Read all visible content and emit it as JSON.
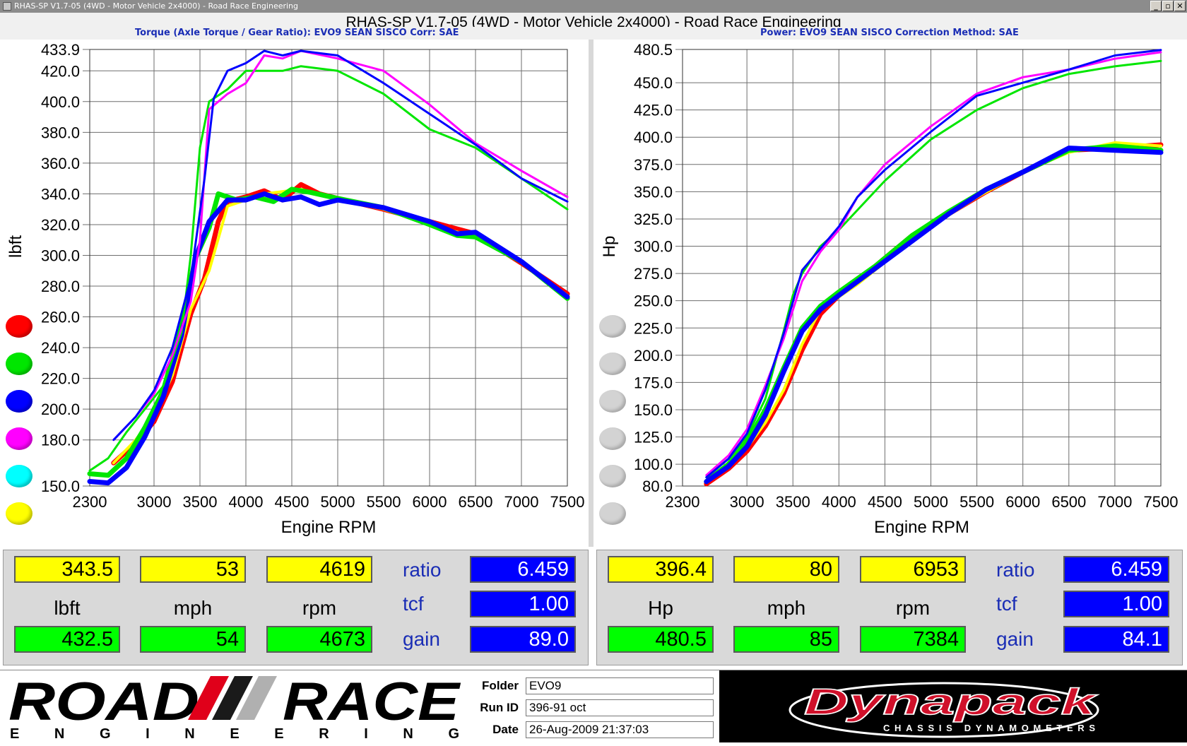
{
  "window": {
    "title": "RHAS-SP V1.7-05  (4WD - Motor Vehicle 2x4000) - Road Race Engineering",
    "buttons": [
      "_",
      "▫",
      "✕"
    ]
  },
  "headline": "RHAS-SP V1.7-05  (4WD - Motor Vehicle 2x4000) - Road Race Engineering",
  "subheads": {
    "torque": "Torque (Axle Torque / Gear Ratio): EVO9 SEAN SISCO     Corr: SAE",
    "power": "Power: EVO9 SEAN SISCO     Correction Method: SAE"
  },
  "legend_colors": [
    "#ff0000",
    "#00e600",
    "#0000ff",
    "#ff00ff",
    "#00ffff",
    "#ffff00"
  ],
  "power_legend_color": "#d3d3d3",
  "chart_data": [
    {
      "type": "line",
      "xlabel": "Engine RPM",
      "ylabel": "lbft",
      "xlim": [
        2300,
        7500
      ],
      "ylim": [
        150,
        433.9
      ],
      "x_ticks": [
        "2300",
        "3000",
        "3500",
        "4000",
        "4500",
        "5000",
        "5500",
        "6000",
        "6500",
        "7000",
        "7500"
      ],
      "y_ticks": [
        "433.9",
        "420.0",
        "400.0",
        "380.0",
        "360.0",
        "340.0",
        "320.0",
        "300.0",
        "280.0",
        "260.0",
        "240.0",
        "220.0",
        "200.0",
        "180.0",
        "150.0"
      ],
      "grid": true,
      "series": [
        {
          "color": "#ff0000",
          "width": 7,
          "x": [
            2560,
            2800,
            3000,
            3200,
            3400,
            3550,
            3700,
            3800,
            4000,
            4200,
            4400,
            4600,
            4800,
            5000,
            5500,
            6000,
            6500,
            7000,
            7500
          ],
          "y": [
            165,
            178,
            192,
            218,
            262,
            285,
            322,
            335,
            338,
            342,
            336,
            346,
            340,
            337,
            330,
            322,
            314,
            295,
            275
          ]
        },
        {
          "color": "#ffff00",
          "width": 4,
          "x": [
            2560,
            2800,
            3000,
            3200,
            3400,
            3600,
            3800,
            4200,
            4600,
            5000,
            5500,
            6000,
            6500,
            7000,
            7500
          ],
          "y": [
            165,
            180,
            196,
            222,
            265,
            290,
            332,
            340,
            343,
            336,
            330,
            320,
            312,
            296,
            274
          ]
        },
        {
          "color": "#00e600",
          "width": 7,
          "x": [
            2300,
            2500,
            2700,
            2900,
            3100,
            3300,
            3450,
            3600,
            3700,
            3900,
            4100,
            4300,
            4500,
            4700,
            5000,
            5500,
            6000,
            6300,
            6500,
            7000,
            7500
          ],
          "y": [
            158,
            157,
            168,
            188,
            212,
            255,
            298,
            318,
            340,
            336,
            338,
            335,
            343,
            341,
            337,
            331,
            320,
            313,
            312,
            296,
            272
          ]
        },
        {
          "color": "#0000ff",
          "width": 7,
          "x": [
            2300,
            2500,
            2700,
            2900,
            3100,
            3300,
            3450,
            3600,
            3800,
            4000,
            4200,
            4400,
            4600,
            4800,
            5000,
            5500,
            6000,
            6300,
            6500,
            7000,
            7500
          ],
          "y": [
            153,
            152,
            162,
            182,
            208,
            248,
            298,
            322,
            336,
            336,
            340,
            336,
            338,
            333,
            336,
            331,
            322,
            314,
            315,
            296,
            273
          ]
        },
        {
          "color": "#00e600",
          "width": 3,
          "x": [
            2300,
            2500,
            2700,
            2900,
            3100,
            3300,
            3400,
            3500,
            3600,
            3800,
            4000,
            4200,
            4400,
            4600,
            5000,
            5500,
            6000,
            6500,
            7000,
            7500
          ],
          "y": [
            160,
            168,
            185,
            200,
            215,
            250,
            300,
            370,
            400,
            408,
            420,
            420,
            420,
            423,
            420,
            405,
            382,
            370,
            350,
            330
          ]
        },
        {
          "color": "#ff00ff",
          "width": 3,
          "x": [
            2560,
            2800,
            3000,
            3200,
            3400,
            3500,
            3600,
            3800,
            4000,
            4200,
            4400,
            4600,
            5000,
            5500,
            6000,
            6500,
            7000,
            7500
          ],
          "y": [
            180,
            195,
            210,
            235,
            270,
            310,
            395,
            405,
            412,
            430,
            428,
            433,
            428,
            420,
            398,
            373,
            355,
            338
          ]
        },
        {
          "color": "#0000ff",
          "width": 3,
          "x": [
            2560,
            2800,
            3000,
            3200,
            3400,
            3550,
            3650,
            3800,
            4000,
            4200,
            4400,
            4600,
            5000,
            5500,
            6000,
            6500,
            7000,
            7500
          ],
          "y": [
            180,
            195,
            212,
            240,
            285,
            350,
            402,
            420,
            425,
            433,
            430,
            433,
            430,
            412,
            392,
            372,
            350,
            335
          ]
        }
      ]
    },
    {
      "type": "line",
      "xlabel": "Engine RPM",
      "ylabel": "Hp",
      "xlim": [
        2300,
        7500
      ],
      "ylim": [
        80,
        480.5
      ],
      "x_ticks": [
        "2300",
        "3000",
        "3500",
        "4000",
        "4500",
        "5000",
        "5500",
        "6000",
        "6500",
        "7000",
        "7500"
      ],
      "y_ticks": [
        "480.5",
        "450.0",
        "425.0",
        "400.0",
        "375.0",
        "350.0",
        "325.0",
        "300.0",
        "275.0",
        "250.0",
        "225.0",
        "200.0",
        "175.0",
        "150.0",
        "125.0",
        "100.0",
        "80.0"
      ],
      "grid": true,
      "series": [
        {
          "color": "#ff0000",
          "width": 7,
          "x": [
            2560,
            2800,
            3000,
            3200,
            3400,
            3600,
            3800,
            4000,
            4400,
            4800,
            5200,
            5600,
            6000,
            6500,
            7000,
            7500
          ],
          "y": [
            82,
            96,
            112,
            135,
            165,
            205,
            238,
            255,
            282,
            310,
            330,
            350,
            368,
            388,
            390,
            393
          ]
        },
        {
          "color": "#ffff00",
          "width": 4,
          "x": [
            2560,
            2800,
            3000,
            3200,
            3400,
            3600,
            3800,
            4200,
            4600,
            5000,
            5500,
            6000,
            6500,
            7000,
            7500
          ],
          "y": [
            84,
            98,
            115,
            138,
            168,
            210,
            242,
            265,
            292,
            318,
            345,
            368,
            386,
            395,
            392
          ]
        },
        {
          "color": "#00e600",
          "width": 7,
          "x": [
            2560,
            2800,
            3000,
            3200,
            3400,
            3600,
            3800,
            4000,
            4400,
            4800,
            5200,
            5600,
            6000,
            6500,
            7000,
            7500
          ],
          "y": [
            84,
            100,
            120,
            150,
            188,
            225,
            245,
            258,
            282,
            310,
            332,
            352,
            368,
            388,
            392,
            388
          ]
        },
        {
          "color": "#0000ff",
          "width": 7,
          "x": [
            2560,
            2800,
            3000,
            3200,
            3400,
            3600,
            3800,
            4000,
            4400,
            4800,
            5200,
            5600,
            6000,
            6500,
            7000,
            7500
          ],
          "y": [
            84,
            98,
            116,
            145,
            185,
            222,
            242,
            255,
            280,
            305,
            330,
            352,
            368,
            390,
            388,
            386
          ]
        },
        {
          "color": "#00e600",
          "width": 3,
          "x": [
            2560,
            2800,
            3000,
            3200,
            3400,
            3500,
            3600,
            3800,
            4000,
            4500,
            5000,
            5500,
            6000,
            6500,
            7000,
            7500
          ],
          "y": [
            88,
            105,
            125,
            160,
            222,
            255,
            275,
            300,
            315,
            360,
            398,
            425,
            445,
            458,
            465,
            470
          ]
        },
        {
          "color": "#ff00ff",
          "width": 3,
          "x": [
            2560,
            2800,
            3000,
            3200,
            3400,
            3600,
            3800,
            4000,
            4200,
            4500,
            5000,
            5500,
            6000,
            6500,
            7000,
            7500
          ],
          "y": [
            90,
            108,
            132,
            172,
            215,
            268,
            295,
            315,
            345,
            375,
            410,
            440,
            455,
            462,
            472,
            478
          ]
        },
        {
          "color": "#0000ff",
          "width": 3,
          "x": [
            2560,
            2800,
            3000,
            3200,
            3400,
            3600,
            3800,
            4000,
            4200,
            4500,
            5000,
            5500,
            6000,
            6500,
            7000,
            7500
          ],
          "y": [
            88,
            105,
            128,
            168,
            220,
            278,
            298,
            318,
            345,
            370,
            405,
            438,
            450,
            462,
            475,
            480
          ]
        }
      ]
    }
  ],
  "readouts": {
    "left": {
      "cur_value": "343.5",
      "cur_mph": "53",
      "cur_rpm": "4619",
      "unit_value": "lbft",
      "unit_mph": "mph",
      "unit_rpm": "rpm",
      "max_value": "432.5",
      "max_mph": "54",
      "max_rpm": "4673",
      "ratio_label": "ratio",
      "ratio": "6.459",
      "tcf_label": "tcf",
      "tcf": "1.00",
      "gain_label": "gain",
      "gain": "89.0"
    },
    "right": {
      "cur_value": "396.4",
      "cur_mph": "80",
      "cur_rpm": "6953",
      "unit_value": "Hp",
      "unit_mph": "mph",
      "unit_rpm": "rpm",
      "max_value": "480.5",
      "max_mph": "85",
      "max_rpm": "7384",
      "ratio_label": "ratio",
      "ratio": "6.459",
      "tcf_label": "tcf",
      "tcf": "1.00",
      "gain_label": "gain",
      "gain": "84.1"
    }
  },
  "footer": {
    "logo_road": "ROAD",
    "logo_race": "RACE",
    "logo_engineering": "E N G I N E E R I N G",
    "folder_label": "Folder",
    "folder": "EVO9",
    "runid_label": "Run ID",
    "runid": "396-91 oct",
    "date_label": "Date",
    "date": "26-Aug-2009  21:37:03",
    "dyna_brand": "Dynapack",
    "dyna_tagline": "CHASSIS DYNAMOMETERS"
  }
}
